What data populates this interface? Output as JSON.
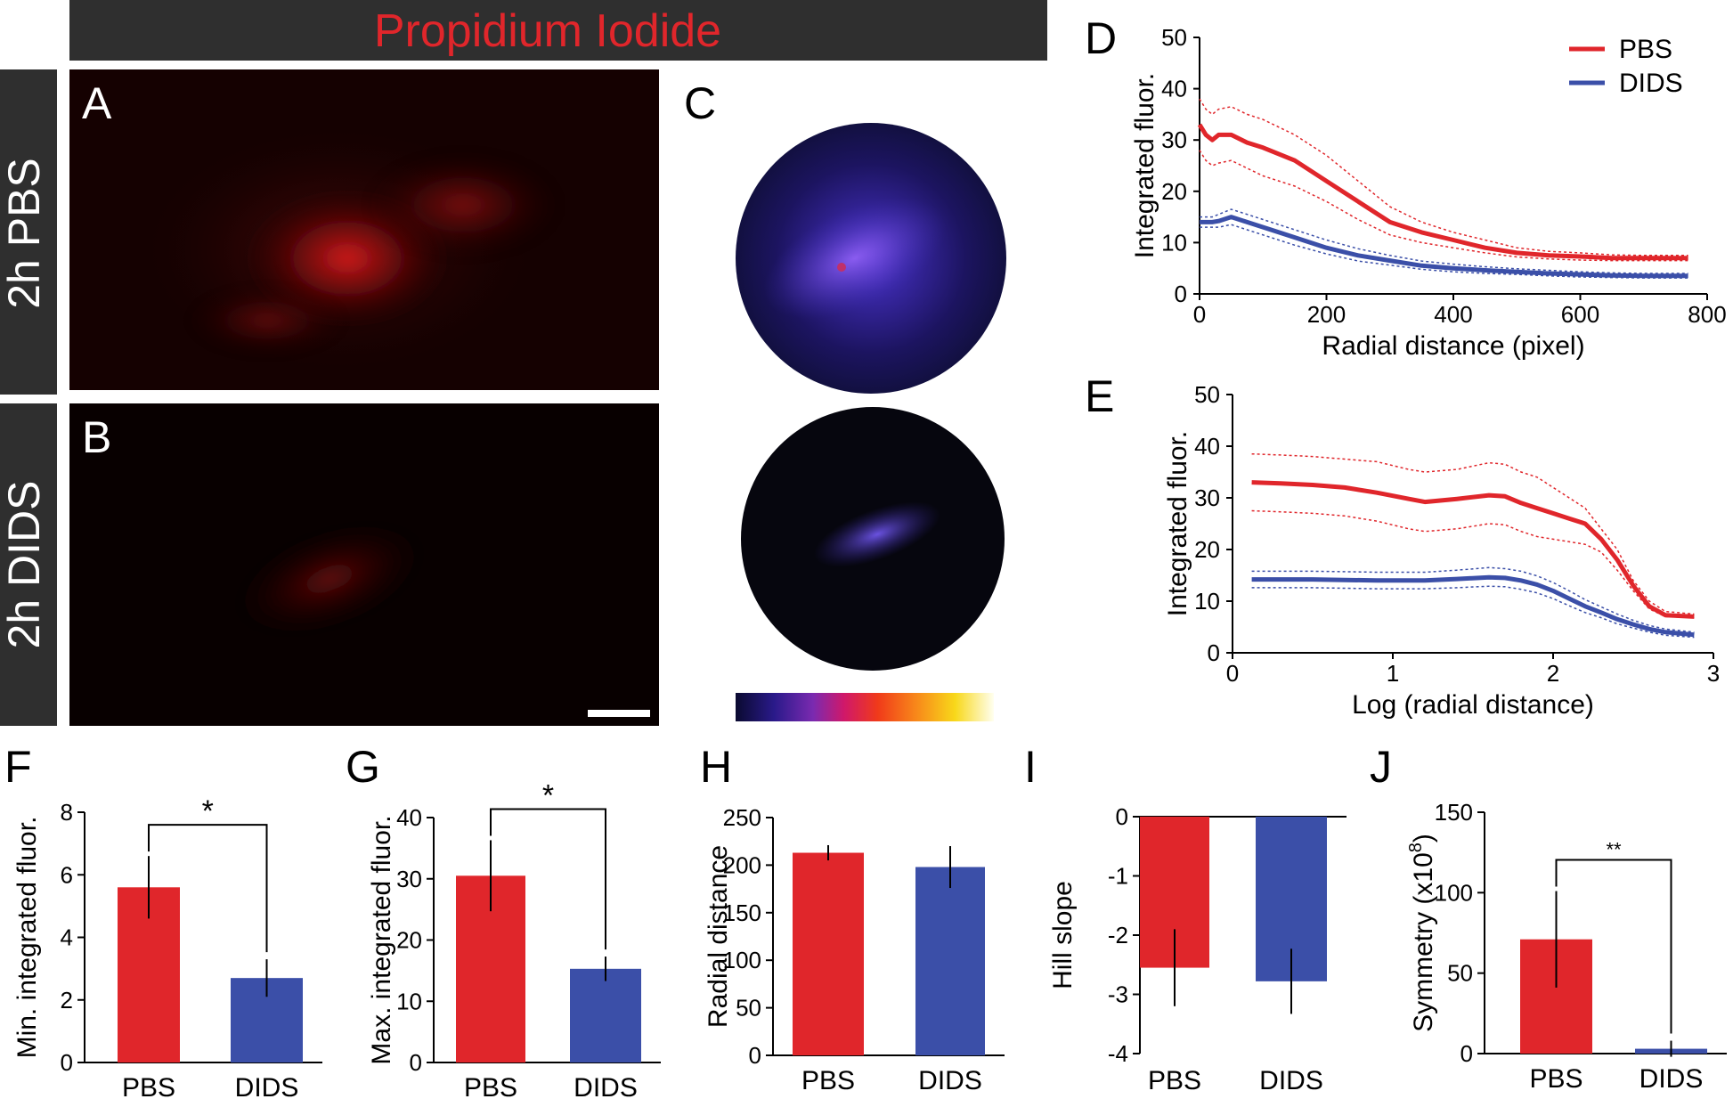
{
  "figure": {
    "title_banner": "Propidium Iodide",
    "row_labels": [
      "2h PBS",
      "2h DIDS"
    ],
    "panel_letters": [
      "A",
      "B",
      "C",
      "D",
      "E",
      "F",
      "G",
      "H",
      "I",
      "J"
    ],
    "colors": {
      "pbs": "#e0262b",
      "dids": "#3b4fa8",
      "banner_bg": "#2f2f2f",
      "banner_text": "#e0262b",
      "row_label_bg": "#2f2f2f",
      "row_label_text": "#ffffff"
    }
  },
  "chart_data": [
    {
      "panel": "D",
      "type": "line",
      "xlabel": "Radial distance (pixel)",
      "ylabel": "Integrated fluor.",
      "xlim": [
        0,
        800
      ],
      "ylim": [
        0,
        50
      ],
      "xticks": [
        0,
        200,
        400,
        600,
        800
      ],
      "yticks": [
        0,
        10,
        20,
        30,
        40,
        50
      ],
      "legend": [
        "PBS",
        "DIDS"
      ],
      "series": [
        {
          "name": "PBS",
          "color": "#e0262b",
          "x": [
            0,
            10,
            20,
            30,
            50,
            75,
            100,
            150,
            200,
            250,
            300,
            350,
            400,
            450,
            500,
            550,
            600,
            650,
            700,
            770
          ],
          "values": [
            33,
            31,
            30,
            31,
            31,
            29.5,
            28.5,
            26,
            22,
            18,
            14,
            12,
            10.5,
            9,
            8,
            7.5,
            7.3,
            7,
            7,
            7
          ],
          "upper": [
            38,
            36,
            35,
            36,
            36.5,
            35,
            34,
            31,
            27,
            22,
            17,
            14,
            12,
            10.5,
            9,
            8.3,
            8,
            7.6,
            7.5,
            7.5
          ],
          "lower": [
            28,
            26,
            25,
            25.5,
            26,
            24.5,
            23,
            21,
            18,
            14.5,
            11.5,
            10,
            9,
            8,
            7.2,
            6.8,
            6.6,
            6.5,
            6.5,
            6.5
          ]
        },
        {
          "name": "DIDS",
          "color": "#3b4fa8",
          "x": [
            0,
            10,
            20,
            30,
            50,
            75,
            100,
            150,
            200,
            250,
            300,
            350,
            400,
            450,
            500,
            550,
            600,
            650,
            700,
            770
          ],
          "values": [
            14,
            14,
            14,
            14.2,
            15,
            14,
            13,
            11,
            9,
            7.5,
            6.5,
            5.5,
            5,
            4.6,
            4.3,
            4,
            3.8,
            3.6,
            3.5,
            3.5
          ],
          "upper": [
            15,
            15,
            15,
            15.5,
            16.5,
            15.5,
            14.5,
            12.5,
            10.5,
            8.8,
            7.5,
            6.4,
            5.8,
            5.3,
            4.9,
            4.6,
            4.3,
            4.1,
            4,
            4
          ],
          "lower": [
            13,
            13,
            13,
            13,
            13.5,
            12.5,
            11.5,
            9.5,
            7.8,
            6.4,
            5.6,
            4.8,
            4.3,
            4,
            3.8,
            3.5,
            3.3,
            3.2,
            3.1,
            3.1
          ]
        }
      ]
    },
    {
      "panel": "E",
      "type": "line",
      "xlabel": "Log (radial distance)",
      "ylabel": "Integrated fluor.",
      "xlim": [
        0,
        3
      ],
      "ylim": [
        0,
        50
      ],
      "xticks": [
        0,
        1,
        2,
        3
      ],
      "yticks": [
        0,
        10,
        20,
        30,
        40,
        50
      ],
      "series": [
        {
          "name": "PBS",
          "color": "#e0262b",
          "x": [
            0.12,
            0.3,
            0.5,
            0.7,
            0.9,
            1.1,
            1.2,
            1.4,
            1.6,
            1.7,
            1.8,
            1.9,
            2.0,
            2.1,
            2.2,
            2.3,
            2.4,
            2.5,
            2.6,
            2.7,
            2.88
          ],
          "values": [
            33,
            32.8,
            32.5,
            32,
            31,
            29.8,
            29.2,
            29.8,
            30.5,
            30.3,
            29,
            28,
            27,
            26,
            25,
            22,
            18,
            13,
            9,
            7.3,
            7
          ],
          "upper": [
            38.5,
            38.3,
            38,
            37.5,
            37,
            35.5,
            35,
            35.5,
            36.8,
            36.5,
            35,
            34,
            32,
            30,
            28,
            24,
            20,
            14,
            10,
            8,
            7.5
          ],
          "lower": [
            27.5,
            27.3,
            27,
            26.5,
            25.5,
            24,
            23.5,
            24,
            25,
            24.8,
            23.5,
            22.5,
            22,
            21.5,
            21,
            19.5,
            16,
            12,
            8.5,
            7,
            6.8
          ]
        },
        {
          "name": "DIDS",
          "color": "#3b4fa8",
          "x": [
            0.12,
            0.3,
            0.5,
            0.7,
            0.9,
            1.1,
            1.2,
            1.4,
            1.6,
            1.7,
            1.8,
            1.9,
            2.0,
            2.1,
            2.2,
            2.3,
            2.4,
            2.5,
            2.6,
            2.7,
            2.88
          ],
          "values": [
            14.2,
            14.2,
            14.2,
            14.1,
            14,
            14,
            14,
            14.3,
            14.6,
            14.5,
            14,
            13.2,
            12,
            10.5,
            9,
            7.8,
            6.5,
            5.5,
            4.6,
            4,
            3.5
          ],
          "upper": [
            15.8,
            15.8,
            15.8,
            15.7,
            15.6,
            15.6,
            15.6,
            16,
            16.5,
            16.3,
            15.8,
            14.9,
            13.6,
            12,
            10.3,
            8.9,
            7.5,
            6.3,
            5.3,
            4.6,
            4
          ],
          "lower": [
            12.6,
            12.6,
            12.6,
            12.5,
            12.4,
            12.4,
            12.4,
            12.6,
            12.9,
            12.8,
            12.3,
            11.6,
            10.5,
            9.1,
            7.8,
            6.8,
            5.6,
            4.8,
            4.0,
            3.4,
            3.0
          ]
        }
      ]
    },
    {
      "panel": "F",
      "type": "bar",
      "categories": [
        "PBS",
        "DIDS"
      ],
      "values": [
        5.6,
        2.7
      ],
      "errors": [
        1.0,
        0.6
      ],
      "ylabel": "Min. integrated  fluor.",
      "ylim": [
        0,
        8
      ],
      "yticks": [
        0,
        2,
        4,
        6,
        8
      ],
      "significance": "*"
    },
    {
      "panel": "G",
      "type": "bar",
      "categories": [
        "PBS",
        "DIDS"
      ],
      "values": [
        30.5,
        15.3
      ],
      "errors": [
        5.8,
        2.0
      ],
      "ylabel": "Max. integrated  fluor.",
      "ylim": [
        0,
        40
      ],
      "yticks": [
        0,
        10,
        20,
        30,
        40
      ],
      "significance": "*"
    },
    {
      "panel": "H",
      "type": "bar",
      "categories": [
        "PBS",
        "DIDS"
      ],
      "values": [
        213,
        198
      ],
      "errors": [
        8,
        22
      ],
      "ylabel": "Radial distance",
      "ylim": [
        0,
        250
      ],
      "yticks": [
        0,
        50,
        100,
        150,
        200,
        250
      ],
      "significance": ""
    },
    {
      "panel": "I",
      "type": "bar",
      "categories": [
        "PBS",
        "DIDS"
      ],
      "values": [
        -2.55,
        -2.78
      ],
      "errors": [
        0.65,
        0.55
      ],
      "ylabel": "Hill slope",
      "ylim": [
        -4,
        0
      ],
      "yticks": [
        -4,
        -3,
        -2,
        -1,
        0
      ],
      "significance": ""
    },
    {
      "panel": "J",
      "type": "bar",
      "categories": [
        "PBS",
        "DIDS"
      ],
      "values": [
        71,
        3
      ],
      "errors": [
        30,
        5
      ],
      "ylabel": "Symmetry (x10",
      "ylabel_sup": "8",
      "ylabel_suffix": ")",
      "ylim": [
        0,
        150
      ],
      "yticks": [
        0,
        50,
        100,
        150
      ],
      "significance": "**"
    }
  ]
}
